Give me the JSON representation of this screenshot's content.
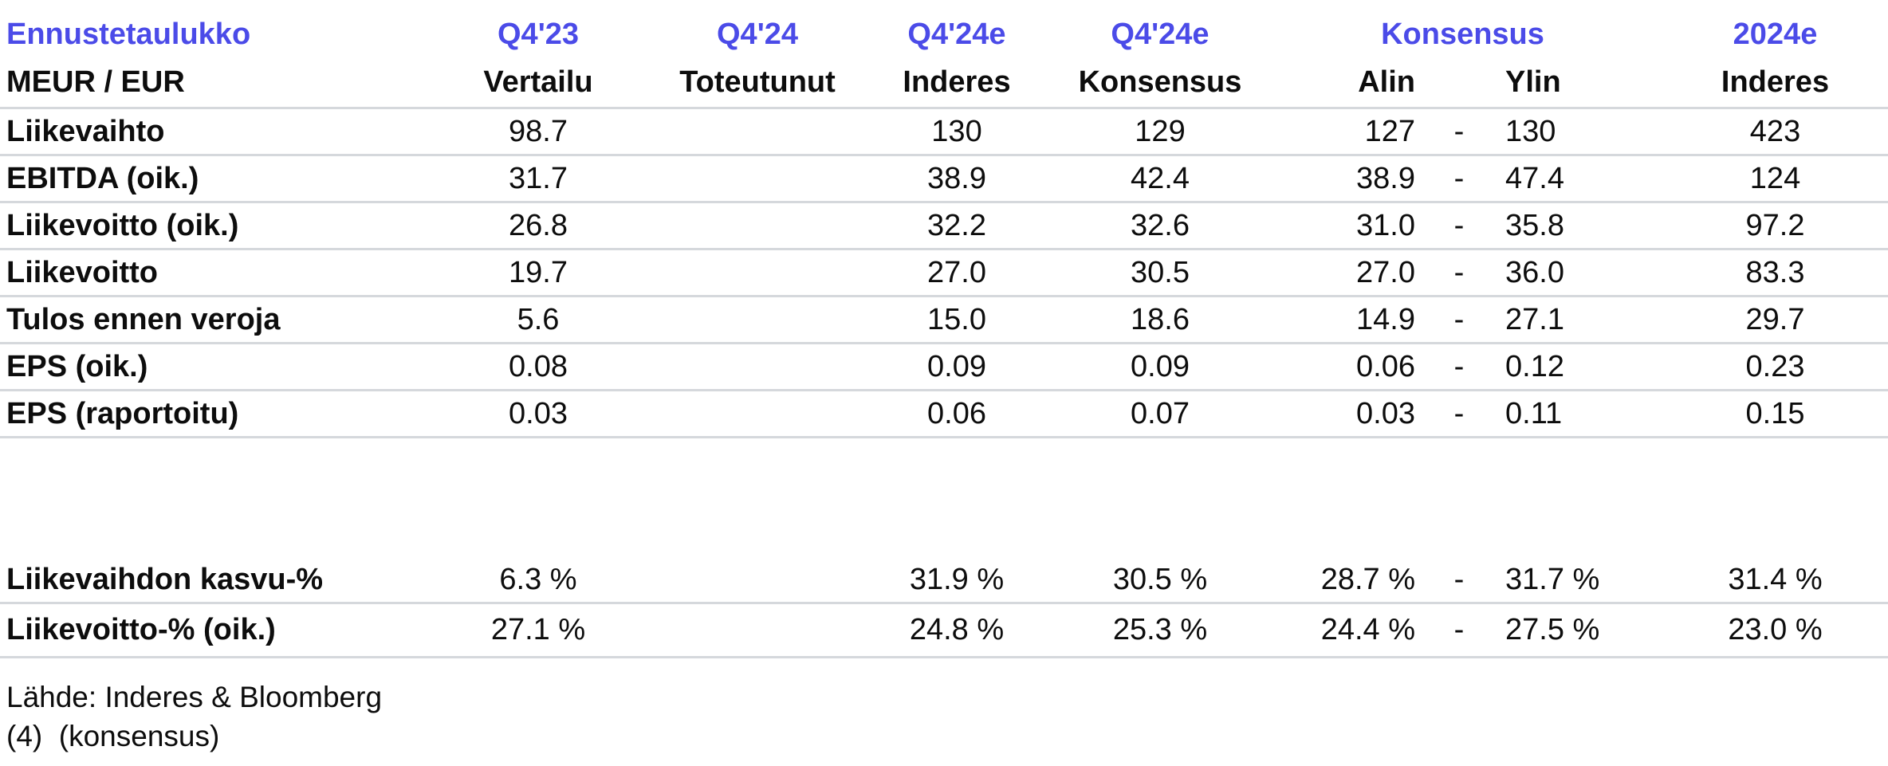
{
  "table": {
    "title": "Ennustetaulukko",
    "unit_label": "MEUR / EUR",
    "columns": {
      "q423": {
        "top": "Q4'23",
        "sub": "Vertailu"
      },
      "q424": {
        "top": "Q4'24",
        "sub": "Toteutunut"
      },
      "q424e_inderes": {
        "top": "Q4'24e",
        "sub": "Inderes"
      },
      "q424e_konsensus": {
        "top": "Q4'24e",
        "sub": "Konsensus"
      },
      "konsensus_range": {
        "top": "Konsensus",
        "sub_low": "Alin",
        "sub_high": "Ylin"
      },
      "fy2024e": {
        "top": "2024e",
        "sub": "Inderes"
      }
    },
    "rows": [
      {
        "label": "Liikevaihto",
        "vertailu": "98.7",
        "toteutunut": "",
        "inderes": "130",
        "konsensus": "129",
        "alin": "127",
        "dash": "-",
        "ylin": "130",
        "fy": "423"
      },
      {
        "label": "EBITDA (oik.)",
        "vertailu": "31.7",
        "toteutunut": "",
        "inderes": "38.9",
        "konsensus": "42.4",
        "alin": "38.9",
        "dash": "-",
        "ylin": "47.4",
        "fy": "124"
      },
      {
        "label": "Liikevoitto (oik.)",
        "vertailu": "26.8",
        "toteutunut": "",
        "inderes": "32.2",
        "konsensus": "32.6",
        "alin": "31.0",
        "dash": "-",
        "ylin": "35.8",
        "fy": "97.2"
      },
      {
        "label": "Liikevoitto",
        "vertailu": "19.7",
        "toteutunut": "",
        "inderes": "27.0",
        "konsensus": "30.5",
        "alin": "27.0",
        "dash": "-",
        "ylin": "36.0",
        "fy": "83.3"
      },
      {
        "label": "Tulos ennen veroja",
        "vertailu": "5.6",
        "toteutunut": "",
        "inderes": "15.0",
        "konsensus": "18.6",
        "alin": "14.9",
        "dash": "-",
        "ylin": "27.1",
        "fy": "29.7"
      },
      {
        "label": "EPS (oik.)",
        "vertailu": "0.08",
        "toteutunut": "",
        "inderes": "0.09",
        "konsensus": "0.09",
        "alin": "0.06",
        "dash": "-",
        "ylin": "0.12",
        "fy": "0.23"
      },
      {
        "label": "EPS (raportoitu)",
        "vertailu": "0.03",
        "toteutunut": "",
        "inderes": "0.06",
        "konsensus": "0.07",
        "alin": "0.03",
        "dash": "-",
        "ylin": "0.11",
        "fy": "0.15"
      }
    ],
    "pct_rows": [
      {
        "label": "Liikevaihdon kasvu-%",
        "vertailu": "6.3 %",
        "toteutunut": "",
        "inderes": "31.9 %",
        "konsensus": "30.5 %",
        "alin": "28.7 %",
        "dash": "-",
        "ylin": "31.7 %",
        "fy": "31.4 %"
      },
      {
        "label": "Liikevoitto-% (oik.)",
        "vertailu": "27.1 %",
        "toteutunut": "",
        "inderes": "24.8 %",
        "konsensus": "25.3 %",
        "alin": "24.4 %",
        "dash": "-",
        "ylin": "27.5 %",
        "fy": "23.0 %"
      }
    ],
    "footer_line1": "Lähde: Inderes & Bloomberg",
    "footer_line2": "(4)  (konsensus)"
  },
  "colors": {
    "accent_blue": "#4B4BE8",
    "text": "#0d0d0d",
    "separator": "#d5d8dc",
    "bg": "#ffffff"
  }
}
